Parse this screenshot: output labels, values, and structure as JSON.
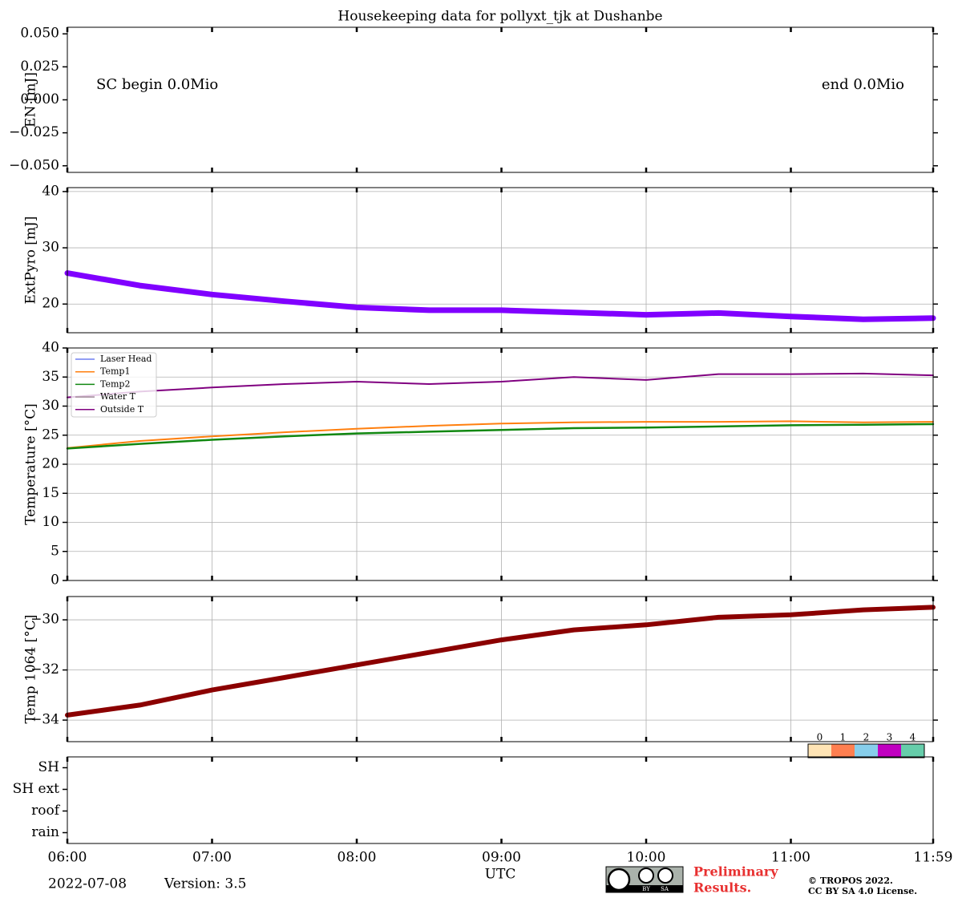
{
  "title": "Housekeeping data for pollyxt_tjk at Dushanbe",
  "xaxis": {
    "label": "UTC",
    "xlim": [
      6,
      11.9833
    ],
    "xticks": [
      {
        "value": 6,
        "label": "06:00"
      },
      {
        "value": 7,
        "label": "07:00"
      },
      {
        "value": 8,
        "label": "08:00"
      },
      {
        "value": 9,
        "label": "09:00"
      },
      {
        "value": 10,
        "label": "10:00"
      },
      {
        "value": 11,
        "label": "11:00"
      },
      {
        "value": 11.9833,
        "label": "11:59"
      }
    ]
  },
  "chart_data": [
    {
      "type": "annotation",
      "ylabel": "EN [mJ]",
      "ylim": [
        -0.055,
        0.055
      ],
      "grid": false,
      "yticks": [
        {
          "value": -0.05,
          "label": "−0.050"
        },
        {
          "value": -0.025,
          "label": "−0.025"
        },
        {
          "value": 0,
          "label": "0.000"
        },
        {
          "value": 0.025,
          "label": "0.025"
        },
        {
          "value": 0.05,
          "label": "0.050"
        }
      ],
      "annotations": [
        "SC begin 0.0Mio",
        "end 0.0Mio"
      ]
    },
    {
      "type": "line",
      "ylabel": "ExtPyro [mJ]",
      "ylim": [
        14.9,
        40.7
      ],
      "yticks": [
        20,
        30,
        40
      ],
      "grid": true,
      "x": [
        6,
        6.5,
        7,
        7.5,
        8,
        8.5,
        9,
        9.5,
        10,
        10.5,
        11,
        11.5,
        11.9833
      ],
      "series": [
        {
          "name": "ExtPyro",
          "color": "#8000ff",
          "width": 7,
          "values": [
            25.5,
            23.3,
            21.7,
            20.5,
            19.4,
            18.9,
            18.9,
            18.5,
            18.1,
            18.4,
            17.8,
            17.3,
            17.5
          ]
        }
      ]
    },
    {
      "type": "line",
      "ylabel": "Temperature [°C]",
      "ylim": [
        0,
        40
      ],
      "yticks": [
        0,
        5,
        10,
        15,
        20,
        25,
        30,
        35,
        40
      ],
      "grid": true,
      "legend": "upper left",
      "x": [
        6,
        6.5,
        7,
        7.5,
        8,
        8.5,
        9,
        9.5,
        10,
        10.5,
        11,
        11.5,
        11.9833
      ],
      "series": [
        {
          "name": "Laser Head",
          "color": "#6f7ff0",
          "width": 2,
          "values": [
            null,
            null,
            null,
            null,
            null,
            null,
            null,
            null,
            null,
            null,
            null,
            null,
            null
          ]
        },
        {
          "name": "Temp1",
          "color": "#ff7f0e",
          "width": 2,
          "values": [
            22.8,
            24.0,
            24.8,
            25.5,
            26.1,
            26.6,
            27.0,
            27.2,
            27.3,
            27.3,
            27.4,
            27.2,
            27.3
          ]
        },
        {
          "name": "Temp2",
          "color": "#118811",
          "width": 2.5,
          "values": [
            22.7,
            23.5,
            24.2,
            24.8,
            25.3,
            25.6,
            25.9,
            26.2,
            26.3,
            26.5,
            26.7,
            26.8,
            26.9
          ]
        },
        {
          "name": "Water T",
          "color": "#a08898",
          "width": 2,
          "values": [
            null,
            null,
            null,
            null,
            null,
            null,
            null,
            null,
            null,
            null,
            null,
            null,
            null
          ]
        },
        {
          "name": "Outside T",
          "color": "#800080",
          "width": 2,
          "values": [
            31.5,
            32.5,
            33.2,
            33.8,
            34.2,
            33.8,
            34.2,
            35.0,
            34.5,
            35.5,
            35.5,
            35.6,
            35.3
          ]
        }
      ]
    },
    {
      "type": "line",
      "ylabel": "Temp 1064 [°C]",
      "ylim": [
        -34.86,
        -29.07
      ],
      "grid": true,
      "yticks": [
        {
          "value": -34,
          "label": "−34"
        },
        {
          "value": -32,
          "label": "−32"
        },
        {
          "value": -30,
          "label": "−30"
        }
      ],
      "x": [
        6,
        6.5,
        7,
        7.5,
        8,
        8.5,
        9,
        9.5,
        10,
        10.5,
        11,
        11.5,
        11.9833
      ],
      "series": [
        {
          "name": "Temp 1064",
          "color": "#8b0000",
          "width": 6,
          "values": [
            -33.8,
            -33.4,
            -32.8,
            -32.3,
            -31.8,
            -31.3,
            -30.8,
            -30.4,
            -30.2,
            -29.9,
            -29.8,
            -29.6,
            -29.5
          ]
        }
      ]
    },
    {
      "type": "status",
      "grid": false,
      "categories": [
        "SH",
        "SH ext",
        "roof",
        "rain"
      ],
      "colorbar": {
        "ticks": [
          0,
          1,
          2,
          3,
          4
        ],
        "colors": [
          "#ffe4b5",
          "#ff7f50",
          "#87ceeb",
          "#c000c0",
          "#66cdaa"
        ]
      }
    }
  ],
  "footer": {
    "date": "2022-07-08",
    "version": "Version: 3.5",
    "badge": [
      "BY",
      "SA"
    ],
    "preliminary": [
      "Preliminary",
      "Results."
    ],
    "copyright": [
      "© TROPOS 2022.",
      "CC BY SA 4.0 License."
    ]
  }
}
